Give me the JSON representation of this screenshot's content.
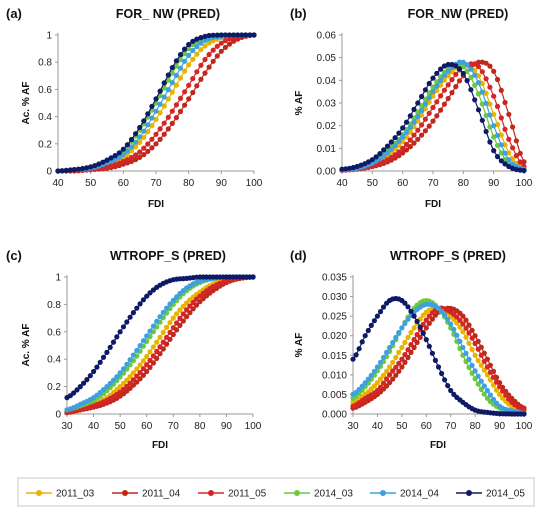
{
  "colors": {
    "2011_03": "#e8b400",
    "2011_04": "#c0281c",
    "2011_05": "#d42626",
    "2014_03": "#6cc83c",
    "2014_04": "#3fa0e0",
    "2014_05": "#0e1a66"
  },
  "legend": [
    "2011_03",
    "2011_04",
    "2011_05",
    "2014_03",
    "2014_04",
    "2014_05"
  ],
  "chart_data": [
    {
      "panel": "(a)",
      "type": "line",
      "title": "FOR_ NW (PRED)",
      "xlabel": "FDI",
      "ylabel": "Ac. % AF",
      "xlim": [
        40,
        100
      ],
      "ylim": [
        0,
        1
      ],
      "xticks": [
        "40",
        "50",
        "60",
        "70",
        "80",
        "90",
        "100"
      ],
      "yticks": [
        "0",
        "0.2",
        "0.4",
        "0.6",
        "0.8",
        "1"
      ],
      "x": [
        40,
        45,
        50,
        55,
        60,
        65,
        70,
        75,
        80,
        85,
        90,
        95,
        100
      ],
      "series": [
        {
          "name": "2011_03",
          "values": [
            0.0,
            0.01,
            0.02,
            0.05,
            0.1,
            0.21,
            0.38,
            0.58,
            0.78,
            0.92,
            0.98,
            1.0,
            1.0
          ]
        },
        {
          "name": "2011_04",
          "values": [
            0.0,
            0.0,
            0.01,
            0.02,
            0.05,
            0.1,
            0.2,
            0.35,
            0.53,
            0.72,
            0.88,
            0.97,
            1.0
          ]
        },
        {
          "name": "2011_05",
          "values": [
            0.0,
            0.01,
            0.01,
            0.03,
            0.07,
            0.14,
            0.27,
            0.44,
            0.63,
            0.82,
            0.94,
            0.99,
            1.0
          ]
        },
        {
          "name": "2014_03",
          "values": [
            0.0,
            0.01,
            0.03,
            0.07,
            0.15,
            0.3,
            0.5,
            0.72,
            0.9,
            0.98,
            1.0,
            1.0,
            1.0
          ]
        },
        {
          "name": "2014_04",
          "values": [
            0.0,
            0.01,
            0.02,
            0.06,
            0.12,
            0.25,
            0.44,
            0.65,
            0.85,
            0.96,
            0.99,
            1.0,
            1.0
          ]
        },
        {
          "name": "2014_05",
          "values": [
            0.0,
            0.01,
            0.03,
            0.08,
            0.16,
            0.32,
            0.53,
            0.76,
            0.93,
            0.99,
            1.0,
            1.0,
            1.0
          ]
        }
      ]
    },
    {
      "panel": "(b)",
      "type": "line",
      "title": "FOR_NW (PRED)",
      "xlabel": "FDI",
      "ylabel": "% AF",
      "xlim": [
        40,
        100
      ],
      "ylim": [
        0,
        0.06
      ],
      "xticks": [
        "40",
        "50",
        "60",
        "70",
        "80",
        "90",
        "100"
      ],
      "yticks": [
        "0.00",
        "0.01",
        "0.02",
        "0.03",
        "0.04",
        "0.05",
        "0.06"
      ],
      "x": [
        40,
        45,
        50,
        55,
        60,
        65,
        70,
        75,
        80,
        85,
        90,
        95,
        100
      ],
      "series": [
        {
          "name": "2011_03",
          "values": [
            0.0005,
            0.001,
            0.003,
            0.007,
            0.013,
            0.022,
            0.033,
            0.042,
            0.047,
            0.042,
            0.025,
            0.008,
            0.001
          ]
        },
        {
          "name": "2011_04",
          "values": [
            0.0003,
            0.0008,
            0.002,
            0.004,
            0.008,
            0.014,
            0.022,
            0.032,
            0.042,
            0.048,
            0.044,
            0.025,
            0.004
          ]
        },
        {
          "name": "2011_05",
          "values": [
            0.0004,
            0.001,
            0.002,
            0.005,
            0.01,
            0.018,
            0.028,
            0.038,
            0.046,
            0.046,
            0.033,
            0.014,
            0.002
          ]
        },
        {
          "name": "2014_03",
          "values": [
            0.0006,
            0.0015,
            0.004,
            0.009,
            0.016,
            0.026,
            0.037,
            0.045,
            0.046,
            0.034,
            0.015,
            0.003,
            0.0005
          ]
        },
        {
          "name": "2014_04",
          "values": [
            0.0005,
            0.0012,
            0.0035,
            0.008,
            0.015,
            0.024,
            0.035,
            0.044,
            0.048,
            0.039,
            0.02,
            0.005,
            0.0008
          ]
        },
        {
          "name": "2014_05",
          "values": [
            0.0008,
            0.002,
            0.005,
            0.011,
            0.019,
            0.03,
            0.041,
            0.047,
            0.043,
            0.027,
            0.009,
            0.002,
            0.0002
          ]
        }
      ]
    },
    {
      "panel": "(c)",
      "type": "line",
      "title": "WTROPF_S (PRED)",
      "xlabel": "FDI",
      "ylabel": "Ac. % AF",
      "xlim": [
        30,
        100
      ],
      "ylim": [
        0,
        1
      ],
      "xticks": [
        "30",
        "40",
        "50",
        "60",
        "70",
        "80",
        "90",
        "100"
      ],
      "yticks": [
        "0",
        "0.2",
        "0.4",
        "0.6",
        "0.8",
        "1"
      ],
      "x": [
        30,
        35,
        40,
        45,
        50,
        55,
        60,
        65,
        70,
        75,
        80,
        85,
        90,
        95,
        100
      ],
      "series": [
        {
          "name": "2011_03",
          "values": [
            0.02,
            0.04,
            0.07,
            0.12,
            0.2,
            0.3,
            0.42,
            0.56,
            0.7,
            0.81,
            0.89,
            0.95,
            0.98,
            0.99,
            1.0
          ]
        },
        {
          "name": "2011_04",
          "values": [
            0.01,
            0.03,
            0.05,
            0.08,
            0.13,
            0.21,
            0.31,
            0.44,
            0.58,
            0.71,
            0.82,
            0.9,
            0.96,
            0.99,
            1.0
          ]
        },
        {
          "name": "2011_05",
          "values": [
            0.02,
            0.03,
            0.06,
            0.1,
            0.16,
            0.25,
            0.36,
            0.49,
            0.63,
            0.76,
            0.86,
            0.93,
            0.97,
            0.99,
            1.0
          ]
        },
        {
          "name": "2014_03",
          "values": [
            0.03,
            0.06,
            0.1,
            0.17,
            0.27,
            0.39,
            0.53,
            0.67,
            0.8,
            0.9,
            0.96,
            0.99,
            1.0,
            1.0,
            1.0
          ]
        },
        {
          "name": "2014_04",
          "values": [
            0.03,
            0.07,
            0.12,
            0.2,
            0.3,
            0.43,
            0.57,
            0.71,
            0.83,
            0.92,
            0.97,
            0.99,
            1.0,
            1.0,
            1.0
          ]
        },
        {
          "name": "2014_05",
          "values": [
            0.12,
            0.2,
            0.31,
            0.45,
            0.6,
            0.74,
            0.86,
            0.94,
            0.98,
            0.99,
            1.0,
            1.0,
            1.0,
            1.0,
            1.0
          ]
        }
      ]
    },
    {
      "panel": "(d)",
      "type": "line",
      "title": "WTROPF_S (PRED)",
      "xlabel": "FDI",
      "ylabel": "% AF",
      "xlim": [
        30,
        100
      ],
      "ylim": [
        0,
        0.035
      ],
      "xticks": [
        "30",
        "40",
        "50",
        "60",
        "70",
        "80",
        "90",
        "100"
      ],
      "yticks": [
        "0.000",
        "0.005",
        "0.010",
        "0.015",
        "0.020",
        "0.025",
        "0.030",
        "0.035"
      ],
      "x": [
        30,
        35,
        40,
        45,
        50,
        55,
        60,
        65,
        70,
        75,
        80,
        85,
        90,
        95,
        100
      ],
      "series": [
        {
          "name": "2011_03",
          "values": [
            0.003,
            0.005,
            0.008,
            0.012,
            0.017,
            0.022,
            0.026,
            0.027,
            0.025,
            0.021,
            0.015,
            0.01,
            0.005,
            0.002,
            0.0008
          ]
        },
        {
          "name": "2011_04",
          "values": [
            0.0015,
            0.003,
            0.005,
            0.008,
            0.012,
            0.017,
            0.022,
            0.026,
            0.027,
            0.025,
            0.02,
            0.014,
            0.008,
            0.004,
            0.0015
          ]
        },
        {
          "name": "2011_05",
          "values": [
            0.002,
            0.004,
            0.006,
            0.01,
            0.014,
            0.019,
            0.024,
            0.027,
            0.026,
            0.023,
            0.018,
            0.012,
            0.007,
            0.003,
            0.0012
          ]
        },
        {
          "name": "2014_03",
          "values": [
            0.004,
            0.007,
            0.011,
            0.016,
            0.022,
            0.027,
            0.029,
            0.027,
            0.022,
            0.015,
            0.009,
            0.004,
            0.0015,
            0.0005,
            0.0001
          ]
        },
        {
          "name": "2014_04",
          "values": [
            0.005,
            0.008,
            0.012,
            0.017,
            0.022,
            0.026,
            0.028,
            0.027,
            0.023,
            0.017,
            0.011,
            0.006,
            0.002,
            0.0008,
            0.0002
          ]
        },
        {
          "name": "2014_05",
          "values": [
            0.014,
            0.02,
            0.025,
            0.029,
            0.029,
            0.025,
            0.019,
            0.012,
            0.006,
            0.003,
            0.001,
            0.0004,
            0.0001,
            0.0,
            0.0
          ]
        }
      ]
    }
  ]
}
